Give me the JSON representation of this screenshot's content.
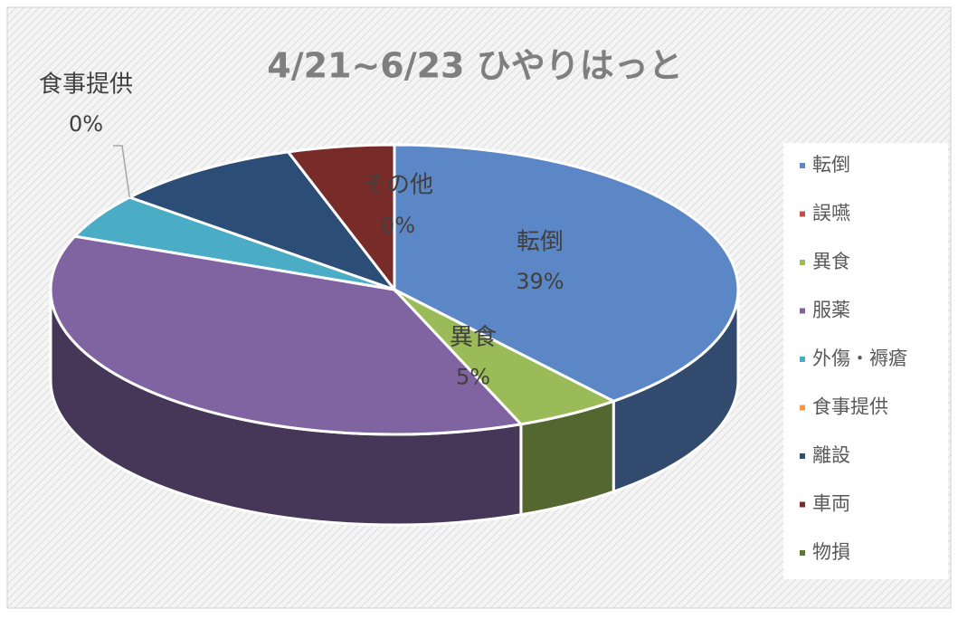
{
  "chart_data": {
    "type": "pie3d",
    "title": "4/21~6/23 ひやりはっと",
    "categories": [
      "転倒",
      "誤嚥",
      "異食",
      "服薬",
      "外傷・褥瘡",
      "食事提供",
      "離設",
      "車両",
      "物損"
    ],
    "values": [
      39,
      0,
      5,
      37,
      5,
      0,
      9,
      5,
      0
    ],
    "value_labels": [
      "39%",
      null,
      "5%",
      null,
      null,
      "0%",
      null,
      null,
      null
    ],
    "colors": [
      "#5b87c6",
      "#c0504d",
      "#9bbb59",
      "#8064a2",
      "#4bacc6",
      "#f79646",
      "#2c4d75",
      "#772c2a",
      "#5f7530"
    ],
    "annotations": [
      {
        "name": "その他",
        "label": "0%"
      }
    ],
    "legend": "right"
  }
}
